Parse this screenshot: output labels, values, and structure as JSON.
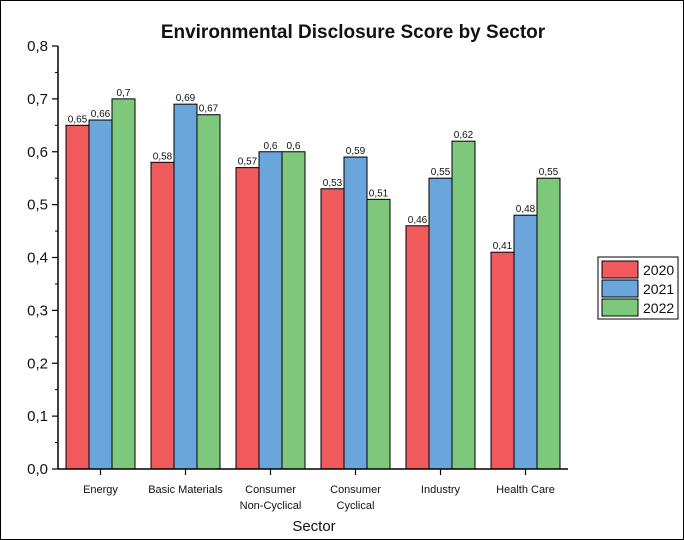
{
  "chart_data": {
    "type": "bar",
    "title": "Environmental Disclosure Score by Sector",
    "xlabel": "Sector",
    "ylabel": "",
    "ylim": [
      0,
      0.8
    ],
    "yticks": [
      "0,0",
      "0,1",
      "0,2",
      "0,3",
      "0,4",
      "0,5",
      "0,6",
      "0,7",
      "0,8"
    ],
    "categories": [
      [
        "Energy"
      ],
      [
        "Basic Materials"
      ],
      [
        "Consumer",
        "Non-Cyclical"
      ],
      [
        "Consumer",
        "Cyclical"
      ],
      [
        "Industry"
      ],
      [
        "Health Care"
      ]
    ],
    "series": [
      {
        "name": "2020",
        "color": "#f05a5c",
        "values": [
          0.65,
          0.58,
          0.57,
          0.53,
          0.46,
          0.41
        ],
        "labels": [
          "0,65",
          "0,58",
          "0,57",
          "0,53",
          "0,46",
          "0,41"
        ]
      },
      {
        "name": "2021",
        "color": "#6aa6dc",
        "values": [
          0.66,
          0.69,
          0.6,
          0.59,
          0.55,
          0.48
        ],
        "labels": [
          "0,66",
          "0,69",
          "0,6",
          "0,59",
          "0,55",
          "0,48"
        ]
      },
      {
        "name": "2022",
        "color": "#7ec87b",
        "values": [
          0.7,
          0.67,
          0.6,
          0.51,
          0.62,
          0.55
        ],
        "labels": [
          "0,7",
          "0,67",
          "0,6",
          "0,51",
          "0,62",
          "0,55"
        ]
      }
    ],
    "legend": {
      "position": "right"
    },
    "grid": false
  }
}
